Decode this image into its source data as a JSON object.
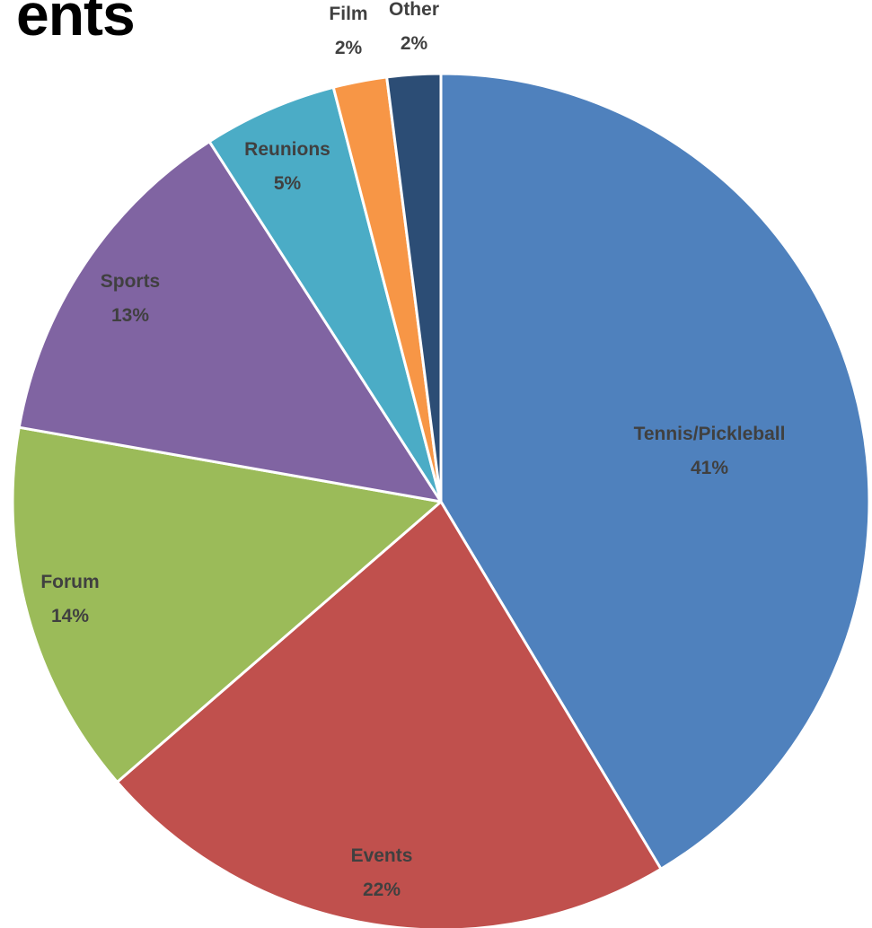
{
  "chart_data": {
    "type": "pie",
    "title": "ents",
    "slices": [
      {
        "label": "Tennis/Pickleball",
        "value": 41,
        "value_label": "41%",
        "color": "#4F81BD"
      },
      {
        "label": "Events",
        "value": 22,
        "value_label": "22%",
        "color": "#C0504D"
      },
      {
        "label": "Forum",
        "value": 14,
        "value_label": "14%",
        "color": "#9BBB59"
      },
      {
        "label": "Sports",
        "value": 13,
        "value_label": "13%",
        "color": "#8064A2"
      },
      {
        "label": "Reunions",
        "value": 5,
        "value_label": "5%",
        "color": "#4BACC6"
      },
      {
        "label": "Film",
        "value": 2,
        "value_label": "2%",
        "color": "#F79646"
      },
      {
        "label": "Other",
        "value": 2,
        "value_label": "2%",
        "color": "#2C4D75"
      }
    ],
    "start_angle_deg": 0,
    "direction": "clockwise",
    "legend": "none"
  }
}
